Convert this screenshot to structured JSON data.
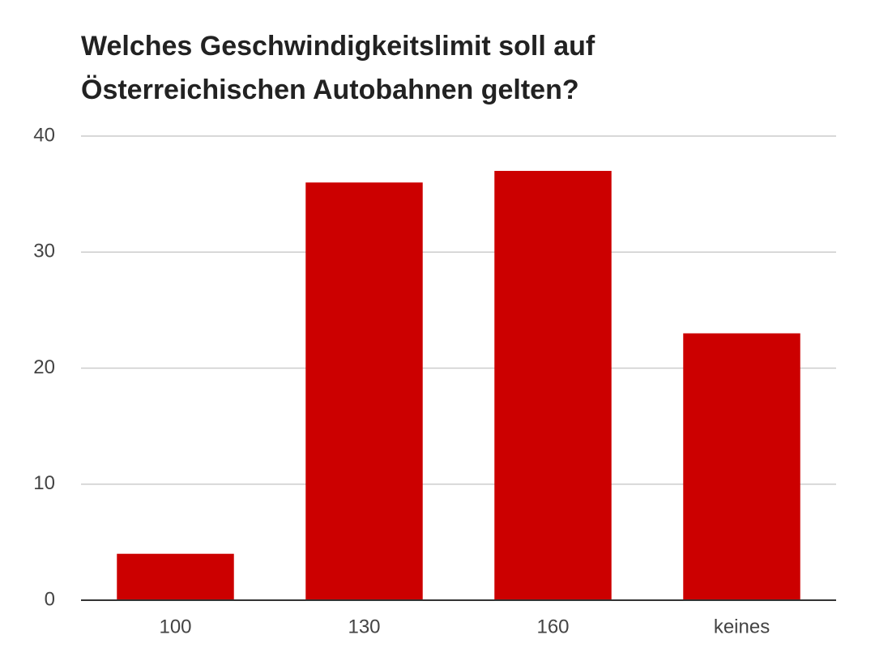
{
  "chart_data": {
    "type": "bar",
    "title": "Welches Geschwindigkeitslimit soll auf Österreichischen Autobahnen gelten?",
    "categories": [
      "100",
      "130",
      "160",
      "keines"
    ],
    "values": [
      4,
      36,
      37,
      23
    ],
    "color": "#cc0000",
    "ylim": [
      0,
      40
    ],
    "yticks": [
      0,
      10,
      20,
      30,
      40
    ],
    "grid": true
  }
}
